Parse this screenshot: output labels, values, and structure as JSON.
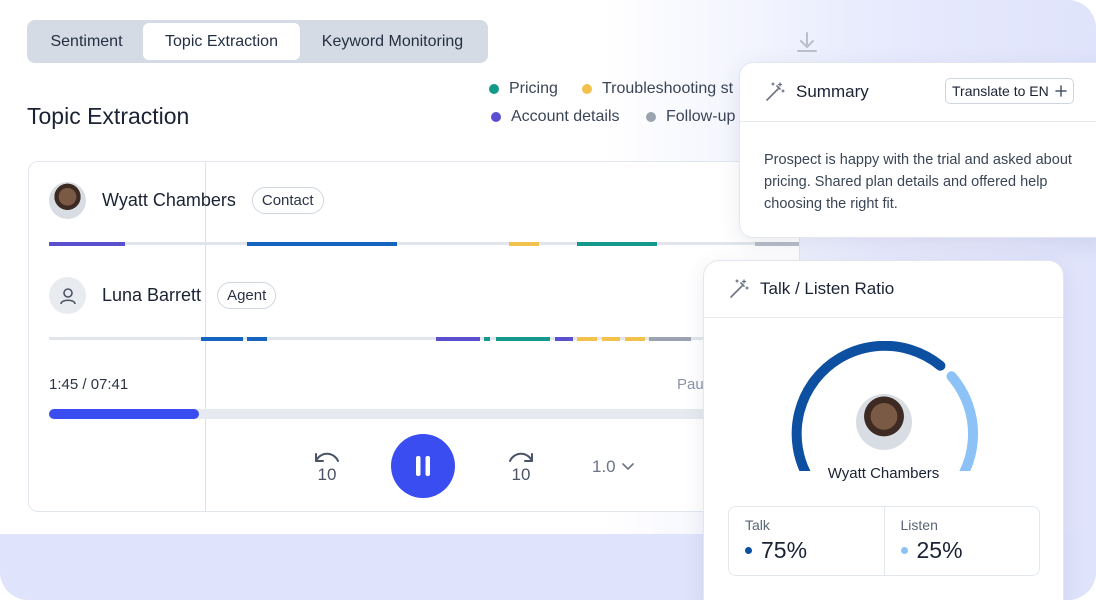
{
  "tabs": [
    {
      "label": "Sentiment",
      "active": false
    },
    {
      "label": "Topic Extraction",
      "active": true
    },
    {
      "label": "Keyword Monitoring",
      "active": false
    }
  ],
  "page_title": "Topic Extraction",
  "legend": [
    {
      "label": "Pricing",
      "color": "#14998a"
    },
    {
      "label": "Troubleshooting st",
      "color": "#f2c14e"
    },
    {
      "label": "Account details",
      "color": "#5a4fcf"
    },
    {
      "label": "Follow-up",
      "color": "#9aa3b0"
    }
  ],
  "participants": [
    {
      "name": "Wyatt Chambers",
      "role": "Contact"
    },
    {
      "name": "Luna Barrett",
      "role": "Agent"
    }
  ],
  "player": {
    "time": "1:45 / 07:41",
    "status": "Pau",
    "progress_fraction": 0.2,
    "speed": "1.0",
    "skip_back_label": "10",
    "skip_forward_label": "10"
  },
  "summary": {
    "title": "Summary",
    "translate_label": "Translate to EN",
    "text": "Prospect is happy with the trial and asked about pricing. Shared plan details and offered help choosing the right fit."
  },
  "talk_listen": {
    "title": "Talk / Listen Ratio",
    "person": "Wyatt Chambers",
    "talk_label": "Talk",
    "talk_value": "75%",
    "listen_label": "Listen",
    "listen_value": "25%",
    "talk_color": "#0d4fa0",
    "listen_color": "#8cc2f5"
  },
  "colors": {
    "accent": "#3a4df0",
    "pricing": "#14998a",
    "troubleshooting": "#f2c14e",
    "account": "#5a4fcf",
    "followup": "#9aa3b0",
    "primary_blue": "#1565c0"
  }
}
